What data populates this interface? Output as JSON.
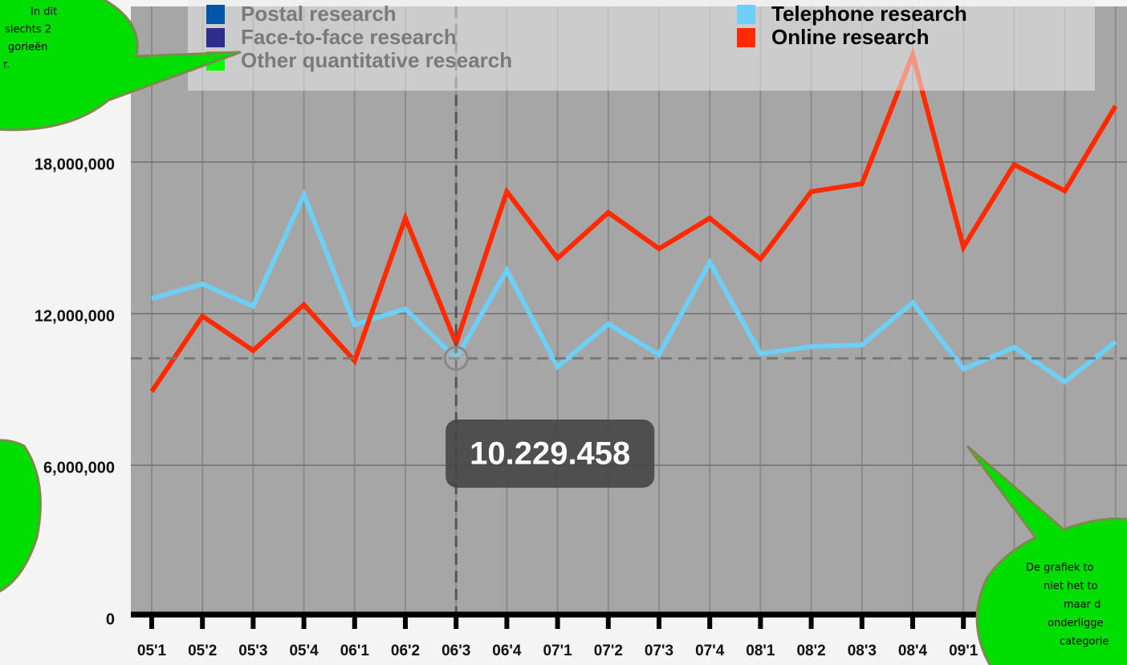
{
  "chart_data": {
    "type": "line",
    "categories": [
      "05'1",
      "05'2",
      "05'3",
      "05'4",
      "06'1",
      "06'2",
      "06'3",
      "06'4",
      "07'1",
      "07'2",
      "07'3",
      "07'4",
      "08'1",
      "08'2",
      "08'3",
      "08'4",
      "09'1",
      null,
      null,
      null
    ],
    "series": [
      {
        "name": "Postal research",
        "color": "#0057a8",
        "visible": false
      },
      {
        "name": "Face-to-face research",
        "color": "#2e2e8f",
        "visible": false
      },
      {
        "name": "Other quantitative research",
        "color": "#00ff00",
        "visible": false
      },
      {
        "name": "Telephone research",
        "color": "#6dcff6",
        "visible": true,
        "values": [
          12600000,
          13170000,
          12290000,
          16700000,
          11560000,
          12190000,
          10229458,
          13710000,
          9900000,
          11590000,
          10380000,
          14030000,
          10410000,
          10700000,
          10760000,
          12440000,
          9810000,
          10670000,
          9300000,
          10890000
        ]
      },
      {
        "name": "Online research",
        "color": "#ff2a00",
        "visible": true,
        "values": [
          8920000,
          11900000,
          10540000,
          12350000,
          10130000,
          15780000,
          10830000,
          16830000,
          14190000,
          16000000,
          14570000,
          15780000,
          14160000,
          16830000,
          17140000,
          22250000,
          14630000,
          17900000,
          16860000,
          20220000
        ]
      }
    ],
    "ylim": [
      0,
      24000000
    ],
    "yticks": [
      0,
      {
        "value": 6000000,
        "label": "6,000,000"
      },
      {
        "value": 12000000,
        "label": "12,000,000"
      },
      {
        "value": 18000000,
        "label": "18,000,000"
      }
    ],
    "grid": true,
    "tooltip": {
      "series": 3,
      "index": 6,
      "label": "10.229.458"
    }
  },
  "callouts": [
    {
      "lines": [
        "In dit",
        "slechts 2",
        "gorieën",
        "r."
      ]
    },
    {
      "lines": []
    },
    {
      "lines": [
        "De grafiek to",
        "niet het to",
        "maar d",
        "onderligge",
        "categorie"
      ]
    }
  ]
}
